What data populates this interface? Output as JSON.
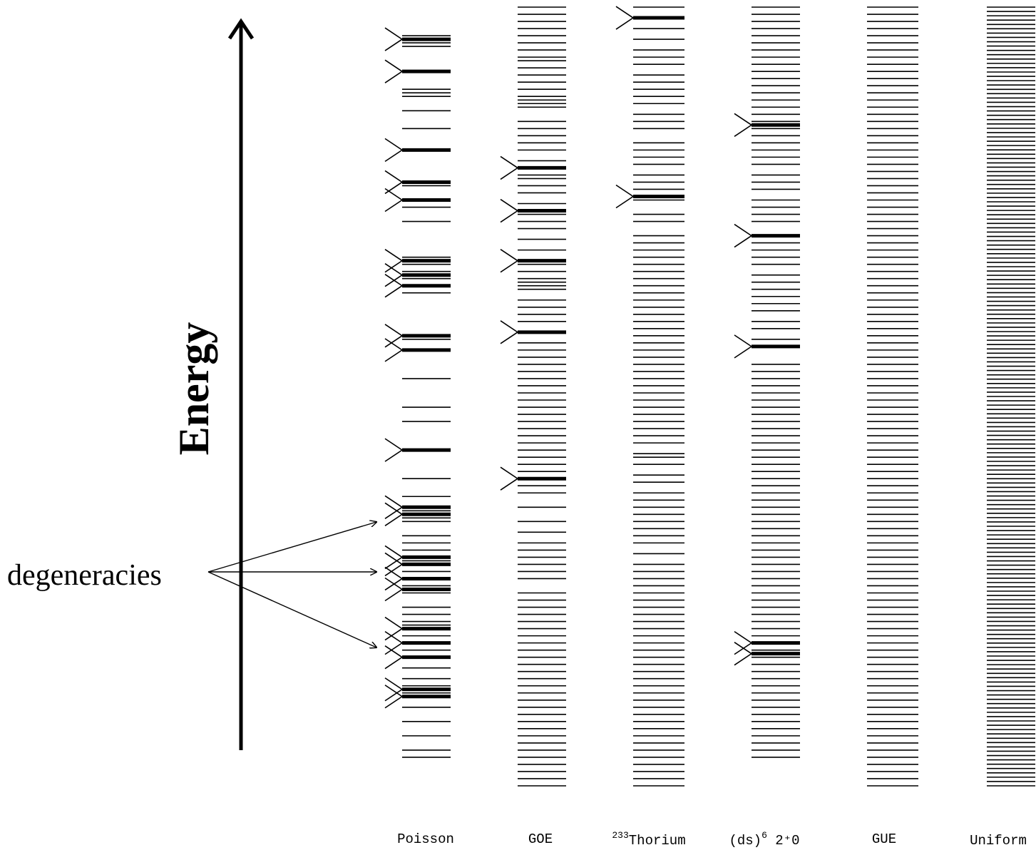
{
  "axis": {
    "label": "Energy"
  },
  "annotation": {
    "label": "degeneracies"
  },
  "columns": [
    {
      "id": "poisson",
      "label": "Poisson",
      "label_sup": "",
      "label_rest": "",
      "levels": [
        0.04,
        0.045,
        0.05,
        0.055,
        0.09,
        0.115,
        0.12,
        0.125,
        0.145,
        0.17,
        0.2,
        0.245,
        0.25,
        0.27,
        0.28,
        0.3,
        0.35,
        0.355,
        0.36,
        0.37,
        0.375,
        0.38,
        0.39,
        0.4,
        0.46,
        0.465,
        0.48,
        0.52,
        0.56,
        0.58,
        0.62,
        0.66,
        0.685,
        0.7,
        0.705,
        0.71,
        0.715,
        0.72,
        0.74,
        0.75,
        0.76,
        0.77,
        0.775,
        0.78,
        0.79,
        0.8,
        0.81,
        0.815,
        0.82,
        0.84,
        0.85,
        0.86,
        0.865,
        0.87,
        0.88,
        0.89,
        0.9,
        0.91,
        0.925,
        0.94,
        0.95,
        0.955,
        0.96,
        0.98,
        1.0,
        1.02,
        1.04,
        1.05
      ],
      "degeneracies": [
        0.045,
        0.09,
        0.2,
        0.245,
        0.27,
        0.355,
        0.375,
        0.39,
        0.46,
        0.48,
        0.62,
        0.7,
        0.71,
        0.77,
        0.78,
        0.8,
        0.815,
        0.87,
        0.89,
        0.91,
        0.955,
        0.965
      ]
    },
    {
      "id": "goe",
      "label": "GOE",
      "label_sup": "",
      "label_rest": "",
      "levels": [
        0.0,
        0.01,
        0.02,
        0.03,
        0.04,
        0.05,
        0.06,
        0.07,
        0.075,
        0.085,
        0.095,
        0.105,
        0.115,
        0.125,
        0.13,
        0.135,
        0.14,
        0.16,
        0.17,
        0.18,
        0.19,
        0.2,
        0.215,
        0.225,
        0.235,
        0.24,
        0.25,
        0.26,
        0.275,
        0.285,
        0.29,
        0.3,
        0.31,
        0.325,
        0.34,
        0.355,
        0.36,
        0.37,
        0.38,
        0.385,
        0.39,
        0.395,
        0.41,
        0.42,
        0.43,
        0.44,
        0.455,
        0.47,
        0.48,
        0.49,
        0.5,
        0.51,
        0.52,
        0.53,
        0.54,
        0.55,
        0.56,
        0.57,
        0.58,
        0.59,
        0.6,
        0.61,
        0.62,
        0.63,
        0.64,
        0.65,
        0.66,
        0.67,
        0.68,
        0.7,
        0.72,
        0.735,
        0.75,
        0.76,
        0.77,
        0.78,
        0.79,
        0.8,
        0.82,
        0.83,
        0.84,
        0.85,
        0.86,
        0.87,
        0.88,
        0.89,
        0.9,
        0.91,
        0.92,
        0.93,
        0.94,
        0.95,
        0.96,
        0.97,
        0.98,
        0.99,
        1.0,
        1.01,
        1.02,
        1.03,
        1.04,
        1.05,
        1.06,
        1.07,
        1.08,
        1.09
      ],
      "degeneracies": [
        0.225,
        0.285,
        0.355,
        0.455,
        0.66
      ]
    },
    {
      "id": "thorium",
      "label": "",
      "label_sup": "233",
      "label_rest": "Thorium",
      "levels": [
        0.0,
        0.015,
        0.03,
        0.045,
        0.06,
        0.07,
        0.08,
        0.095,
        0.105,
        0.115,
        0.125,
        0.135,
        0.15,
        0.16,
        0.17,
        0.19,
        0.2,
        0.21,
        0.22,
        0.235,
        0.245,
        0.255,
        0.265,
        0.27,
        0.29,
        0.3,
        0.32,
        0.33,
        0.34,
        0.35,
        0.36,
        0.37,
        0.38,
        0.39,
        0.4,
        0.41,
        0.42,
        0.43,
        0.44,
        0.45,
        0.46,
        0.47,
        0.48,
        0.49,
        0.5,
        0.51,
        0.52,
        0.53,
        0.54,
        0.55,
        0.56,
        0.57,
        0.58,
        0.59,
        0.6,
        0.61,
        0.625,
        0.63,
        0.64,
        0.655,
        0.665,
        0.68,
        0.69,
        0.7,
        0.71,
        0.72,
        0.73,
        0.74,
        0.75,
        0.765,
        0.78,
        0.79,
        0.8,
        0.81,
        0.82,
        0.83,
        0.84,
        0.85,
        0.86,
        0.87,
        0.88,
        0.89,
        0.9,
        0.91,
        0.92,
        0.93,
        0.94,
        0.95,
        0.96,
        0.97,
        0.98,
        0.99,
        1.0,
        1.01,
        1.02,
        1.03,
        1.04,
        1.05,
        1.06,
        1.07,
        1.08,
        1.09
      ],
      "degeneracies": [
        0.015,
        0.265
      ]
    },
    {
      "id": "ds6",
      "label": "(ds)",
      "label_sup": "6",
      "label_rest": " 2⁺0",
      "levels": [
        0.0,
        0.01,
        0.02,
        0.03,
        0.04,
        0.05,
        0.06,
        0.07,
        0.08,
        0.09,
        0.1,
        0.11,
        0.12,
        0.13,
        0.14,
        0.15,
        0.16,
        0.17,
        0.18,
        0.19,
        0.2,
        0.21,
        0.22,
        0.235,
        0.245,
        0.255,
        0.27,
        0.28,
        0.29,
        0.3,
        0.32,
        0.33,
        0.34,
        0.35,
        0.36,
        0.375,
        0.385,
        0.395,
        0.405,
        0.415,
        0.425,
        0.44,
        0.45,
        0.465,
        0.475,
        0.5,
        0.51,
        0.52,
        0.53,
        0.54,
        0.55,
        0.56,
        0.57,
        0.58,
        0.59,
        0.6,
        0.61,
        0.62,
        0.63,
        0.64,
        0.65,
        0.66,
        0.67,
        0.68,
        0.69,
        0.7,
        0.71,
        0.72,
        0.73,
        0.74,
        0.75,
        0.76,
        0.77,
        0.78,
        0.79,
        0.8,
        0.81,
        0.82,
        0.83,
        0.84,
        0.85,
        0.86,
        0.87,
        0.88,
        0.89,
        0.9,
        0.905,
        0.91,
        0.92,
        0.93,
        0.94,
        0.95,
        0.96,
        0.97,
        0.98,
        0.99,
        1.0,
        1.01,
        1.02,
        1.03,
        1.04,
        1.05
      ],
      "degeneracies": [
        0.165,
        0.32,
        0.475,
        0.89,
        0.905
      ]
    },
    {
      "id": "gue",
      "label": "GUE",
      "label_sup": "",
      "label_rest": "",
      "levels": [
        0.0,
        0.01,
        0.02,
        0.03,
        0.04,
        0.05,
        0.06,
        0.07,
        0.08,
        0.09,
        0.1,
        0.11,
        0.12,
        0.13,
        0.14,
        0.15,
        0.16,
        0.17,
        0.18,
        0.19,
        0.2,
        0.21,
        0.22,
        0.23,
        0.24,
        0.25,
        0.26,
        0.27,
        0.28,
        0.29,
        0.3,
        0.31,
        0.32,
        0.33,
        0.34,
        0.35,
        0.36,
        0.37,
        0.38,
        0.39,
        0.4,
        0.41,
        0.42,
        0.43,
        0.44,
        0.45,
        0.46,
        0.47,
        0.48,
        0.49,
        0.5,
        0.51,
        0.52,
        0.53,
        0.54,
        0.55,
        0.56,
        0.57,
        0.58,
        0.59,
        0.6,
        0.61,
        0.62,
        0.63,
        0.64,
        0.65,
        0.66,
        0.67,
        0.68,
        0.69,
        0.7,
        0.71,
        0.72,
        0.73,
        0.74,
        0.75,
        0.76,
        0.77,
        0.78,
        0.79,
        0.8,
        0.81,
        0.82,
        0.83,
        0.84,
        0.85,
        0.86,
        0.87,
        0.88,
        0.89,
        0.9,
        0.91,
        0.92,
        0.93,
        0.94,
        0.95,
        0.96,
        0.97,
        0.98,
        0.99,
        1.0,
        1.01,
        1.02,
        1.03,
        1.04,
        1.05,
        1.06,
        1.07,
        1.08,
        1.09
      ],
      "degeneracies": []
    },
    {
      "id": "uniform",
      "label": "Uniform",
      "label_sup": "",
      "label_rest": "",
      "levels": "uniform",
      "degeneracies": []
    }
  ]
}
